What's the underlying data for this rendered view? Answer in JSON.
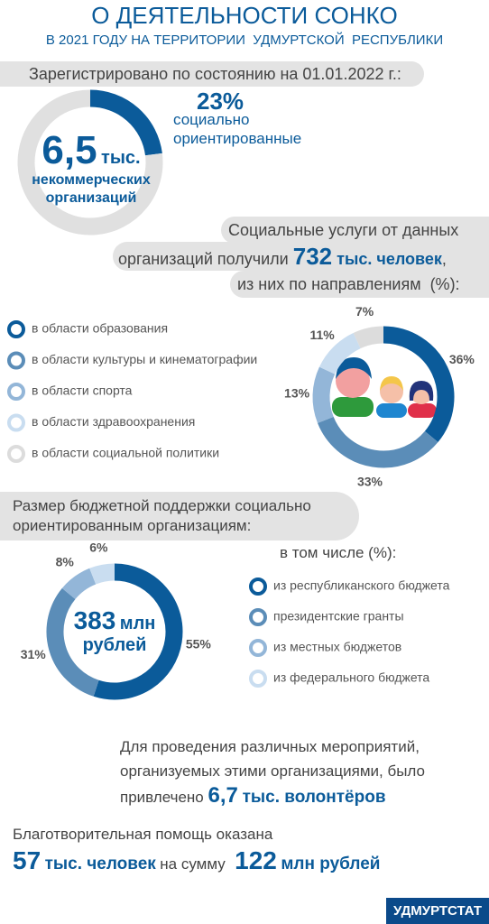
{
  "header": {
    "title": "О ДЕЯТЕЛЬНОСТИ СОНКО",
    "subtitle": "В 2021 ГОДУ НА ТЕРРИТОРИИ  УДМУРТСКОЙ  РЕСПУБЛИКИ"
  },
  "registered": {
    "label": "Зарегистрировано по состоянию на 01.01.2022 г.:",
    "count": "6,5",
    "count_unit": "тыс.",
    "count_text": "некоммерческих организаций"
  },
  "services": {
    "line1": "Социальные услуги от данных",
    "line2_start": "организаций получили",
    "people": "732",
    "people_unit": "тыс. человек",
    "line2_end": ",",
    "line3": "из них по направлениям  (%):"
  },
  "budget": {
    "label": "Размер бюджетной поддержки социально ориентированным организациям:",
    "amount": "383",
    "amount_unit": "млн",
    "amount_text": "рублей",
    "legend_title": "в том числе (%):"
  },
  "volunteers": {
    "text": "Для проведения различных мероприятий, организуемых этими организациями, было",
    "prefix": "привлечено",
    "count": "6,7",
    "unit": "тыс. волонтёров"
  },
  "charity": {
    "text": "Благотворительная помощь оказана",
    "people": "57",
    "people_unit": "тыс. человек",
    "middle": "на сумму",
    "amount": "122",
    "amount_unit": "млн рублей"
  },
  "footer": {
    "source": "УДМУРТСТАТ"
  },
  "chart_data": [
    {
      "type": "donut",
      "categories": [
        "социально ориентированные",
        null
      ],
      "values": [
        23,
        77
      ],
      "value_labels": [
        "23%",
        null
      ],
      "colors": [
        "#0b5b9a",
        "#e0e0e0"
      ]
    },
    {
      "type": "donut",
      "categories": [
        "в области образования",
        "в области культуры и кинематографии",
        "в области спорта",
        "в области здравоохранения",
        "в области социальной политики"
      ],
      "values": [
        36,
        33,
        13,
        11,
        7
      ],
      "value_labels": [
        "36%",
        "33%",
        "13%",
        "11%",
        "7%"
      ],
      "colors": [
        "#0b5b9a",
        "#5b8db8",
        "#93b6d8",
        "#c9ddf0",
        "#dcdcdc"
      ]
    },
    {
      "type": "donut",
      "categories": [
        "из республиканского бюджета",
        "президентские гранты",
        "из местных бюджетов",
        "из федерального бюджета"
      ],
      "values": [
        55,
        31,
        8,
        6
      ],
      "value_labels": [
        "55%",
        "31%",
        "8%",
        "6%"
      ],
      "colors": [
        "#0b5b9a",
        "#5b8db8",
        "#93b6d8",
        "#c9ddf0"
      ]
    }
  ]
}
